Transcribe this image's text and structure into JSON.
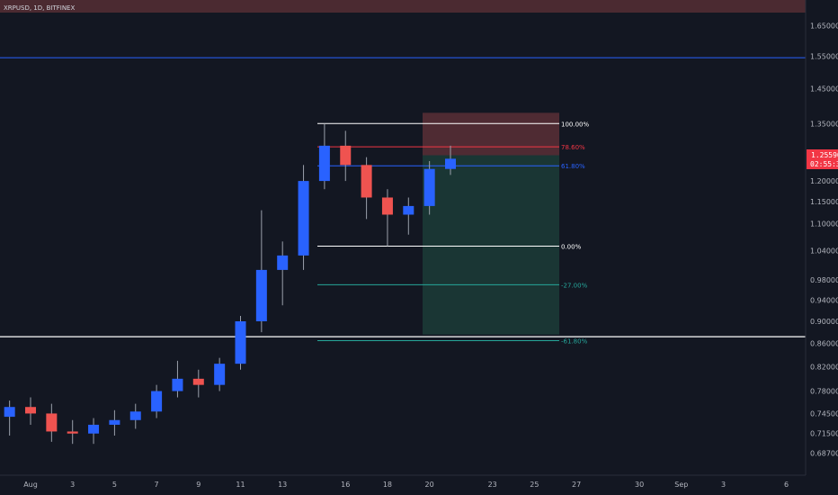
{
  "symbol_label": "XRPUSD, 1D, BITFINEX",
  "colors": {
    "background": "#131722",
    "bull": "#2962ff",
    "bear": "#ef5350",
    "fib_white": "#ffffff",
    "fib_red": "#f23645",
    "fib_blue": "#2962ff",
    "fib_green": "#26a69a",
    "resistance_line": "#2962ff",
    "support_line": "#ffffff",
    "stop_zone": "#5a2f36",
    "target_zone": "#1c3a36"
  },
  "current_price": {
    "price": "1.25590",
    "countdown": "02:55:31"
  },
  "chart_data": {
    "type": "candlestick",
    "y_scale": "log",
    "ylim": [
      0.665,
      1.72
    ],
    "y_ticks": [
      "1.65000",
      "1.55000",
      "1.45000",
      "1.35000",
      "1.25000",
      "1.20000",
      "1.15000",
      "1.10000",
      "1.04000",
      "0.98000",
      "0.94000",
      "0.90000",
      "0.86000",
      "0.82000",
      "0.78000",
      "0.74500",
      "0.71500",
      "0.68700"
    ],
    "x_ticks": [
      "Aug",
      "3",
      "5",
      "7",
      "9",
      "11",
      "13",
      "16",
      "18",
      "20",
      "23",
      "25",
      "27",
      "30",
      "Sep",
      "3",
      "6"
    ],
    "resistance_price": 1.545,
    "support_price": 0.872,
    "fib_levels": [
      {
        "label": "100.00%",
        "price": 1.35,
        "color_key": "fib_white"
      },
      {
        "label": "78.60%",
        "price": 1.287,
        "color_key": "fib_red"
      },
      {
        "label": "61.80%",
        "price": 1.238,
        "color_key": "fib_blue"
      },
      {
        "label": "0.00%",
        "price": 1.05,
        "color_key": "fib_white"
      },
      {
        "label": "-27.00%",
        "price": 0.97,
        "color_key": "fib_green"
      },
      {
        "label": "-61.80%",
        "price": 0.865,
        "color_key": "fib_green"
      }
    ],
    "position": {
      "entry": 1.265,
      "stop": 1.38,
      "target": 0.876
    },
    "daily_ohlc": [
      {
        "date": "Jul 31",
        "open": 0.74,
        "high": 0.765,
        "low": 0.712,
        "close": 0.755
      },
      {
        "date": "Aug 1",
        "open": 0.755,
        "high": 0.77,
        "low": 0.728,
        "close": 0.745
      },
      {
        "date": "Aug 2",
        "open": 0.745,
        "high": 0.76,
        "low": 0.703,
        "close": 0.718
      },
      {
        "date": "Aug 3",
        "open": 0.718,
        "high": 0.735,
        "low": 0.7,
        "close": 0.715
      },
      {
        "date": "Aug 4",
        "open": 0.715,
        "high": 0.738,
        "low": 0.7,
        "close": 0.728
      },
      {
        "date": "Aug 5",
        "open": 0.728,
        "high": 0.75,
        "low": 0.712,
        "close": 0.735
      },
      {
        "date": "Aug 6",
        "open": 0.735,
        "high": 0.76,
        "low": 0.722,
        "close": 0.748
      },
      {
        "date": "Aug 7",
        "open": 0.748,
        "high": 0.79,
        "low": 0.738,
        "close": 0.78
      },
      {
        "date": "Aug 8",
        "open": 0.78,
        "high": 0.83,
        "low": 0.77,
        "close": 0.8
      },
      {
        "date": "Aug 9",
        "open": 0.8,
        "high": 0.815,
        "low": 0.77,
        "close": 0.79
      },
      {
        "date": "Aug 10",
        "open": 0.79,
        "high": 0.835,
        "low": 0.78,
        "close": 0.825
      },
      {
        "date": "Aug 11",
        "open": 0.825,
        "high": 0.91,
        "low": 0.815,
        "close": 0.9
      },
      {
        "date": "Aug 12",
        "open": 0.9,
        "high": 1.13,
        "low": 0.88,
        "close": 1.0
      },
      {
        "date": "Aug 13",
        "open": 1.0,
        "high": 1.06,
        "low": 0.93,
        "close": 1.03
      },
      {
        "date": "Aug 14",
        "open": 1.03,
        "high": 1.24,
        "low": 1.0,
        "close": 1.2
      },
      {
        "date": "Aug 15",
        "open": 1.2,
        "high": 1.35,
        "low": 1.18,
        "close": 1.29
      },
      {
        "date": "Aug 16",
        "open": 1.29,
        "high": 1.33,
        "low": 1.2,
        "close": 1.24
      },
      {
        "date": "Aug 17",
        "open": 1.24,
        "high": 1.26,
        "low": 1.11,
        "close": 1.16
      },
      {
        "date": "Aug 18",
        "open": 1.16,
        "high": 1.18,
        "low": 1.05,
        "close": 1.12
      },
      {
        "date": "Aug 19",
        "open": 1.12,
        "high": 1.16,
        "low": 1.075,
        "close": 1.14
      },
      {
        "date": "Aug 20",
        "open": 1.14,
        "high": 1.25,
        "low": 1.12,
        "close": 1.23
      },
      {
        "date": "Aug 21",
        "open": 1.23,
        "high": 1.29,
        "low": 1.215,
        "close": 1.256
      }
    ]
  }
}
